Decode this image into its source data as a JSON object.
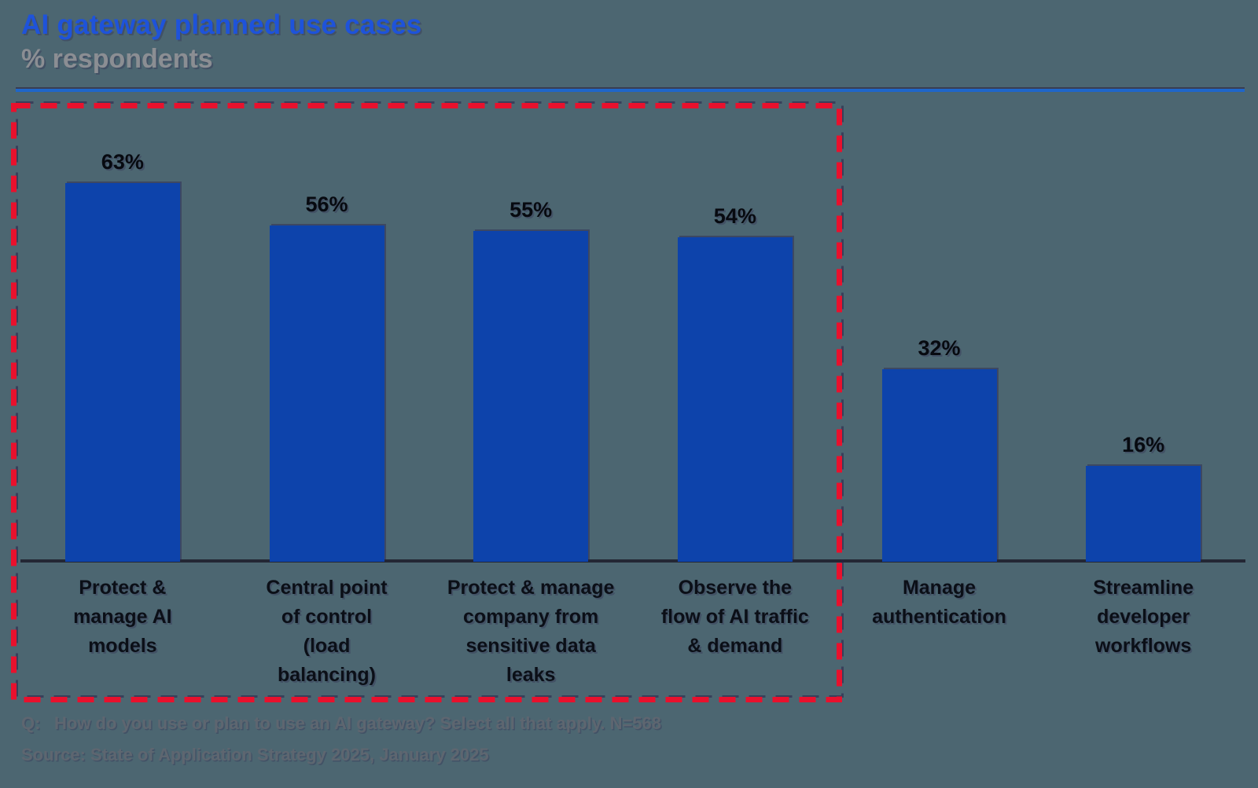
{
  "header": {
    "title": "AI gateway planned use cases",
    "subtitle": "% respondents"
  },
  "colors": {
    "background": "#4C6671",
    "bar": "#0D43AB",
    "title": "#1E53DA",
    "subtitle": "#8B8E93",
    "axis": "#232734",
    "divider_top": "#3A3E51",
    "divider_bottom": "#1F66C9",
    "highlight_box": "#E8112D",
    "category_label": "#0B0F17",
    "value_label": "#070A10",
    "footer_text": "#5E6670"
  },
  "chart_data": {
    "type": "bar",
    "title": "AI gateway planned use cases",
    "ylabel": "% respondents",
    "unit": "%",
    "categories": [
      "Protect & manage AI models",
      "Central point of control (load balancing)",
      "Protect & manage company from sensitive data leaks",
      "Observe the flow of AI traffic & demand",
      "Manage authentication",
      "Streamline developer workflows"
    ],
    "category_label_lines": [
      [
        "Protect &",
        "manage AI",
        "models"
      ],
      [
        "Central point",
        "of control",
        "(load",
        "balancing)"
      ],
      [
        "Protect & manage",
        "company from",
        "sensitive data",
        "leaks"
      ],
      [
        "Observe the",
        "flow of AI traffic",
        "& demand"
      ],
      [
        "Manage",
        "authentication"
      ],
      [
        "Streamline",
        "developer",
        "workflows"
      ]
    ],
    "values": [
      63,
      56,
      55,
      54,
      32,
      16
    ],
    "value_labels": [
      "63%",
      "56%",
      "55%",
      "54%",
      "32%",
      "16%"
    ],
    "ylim": [
      0,
      70
    ],
    "grid": false,
    "legend": false,
    "annotation": "First four bars enclosed in a red dashed highlight box"
  },
  "footer": {
    "q_label": "Q:",
    "q_text": "How do you use or plan to use an AI gateway? Select all that apply. N=568",
    "source": "Source: State of Application Strategy 2025, January 2025"
  }
}
